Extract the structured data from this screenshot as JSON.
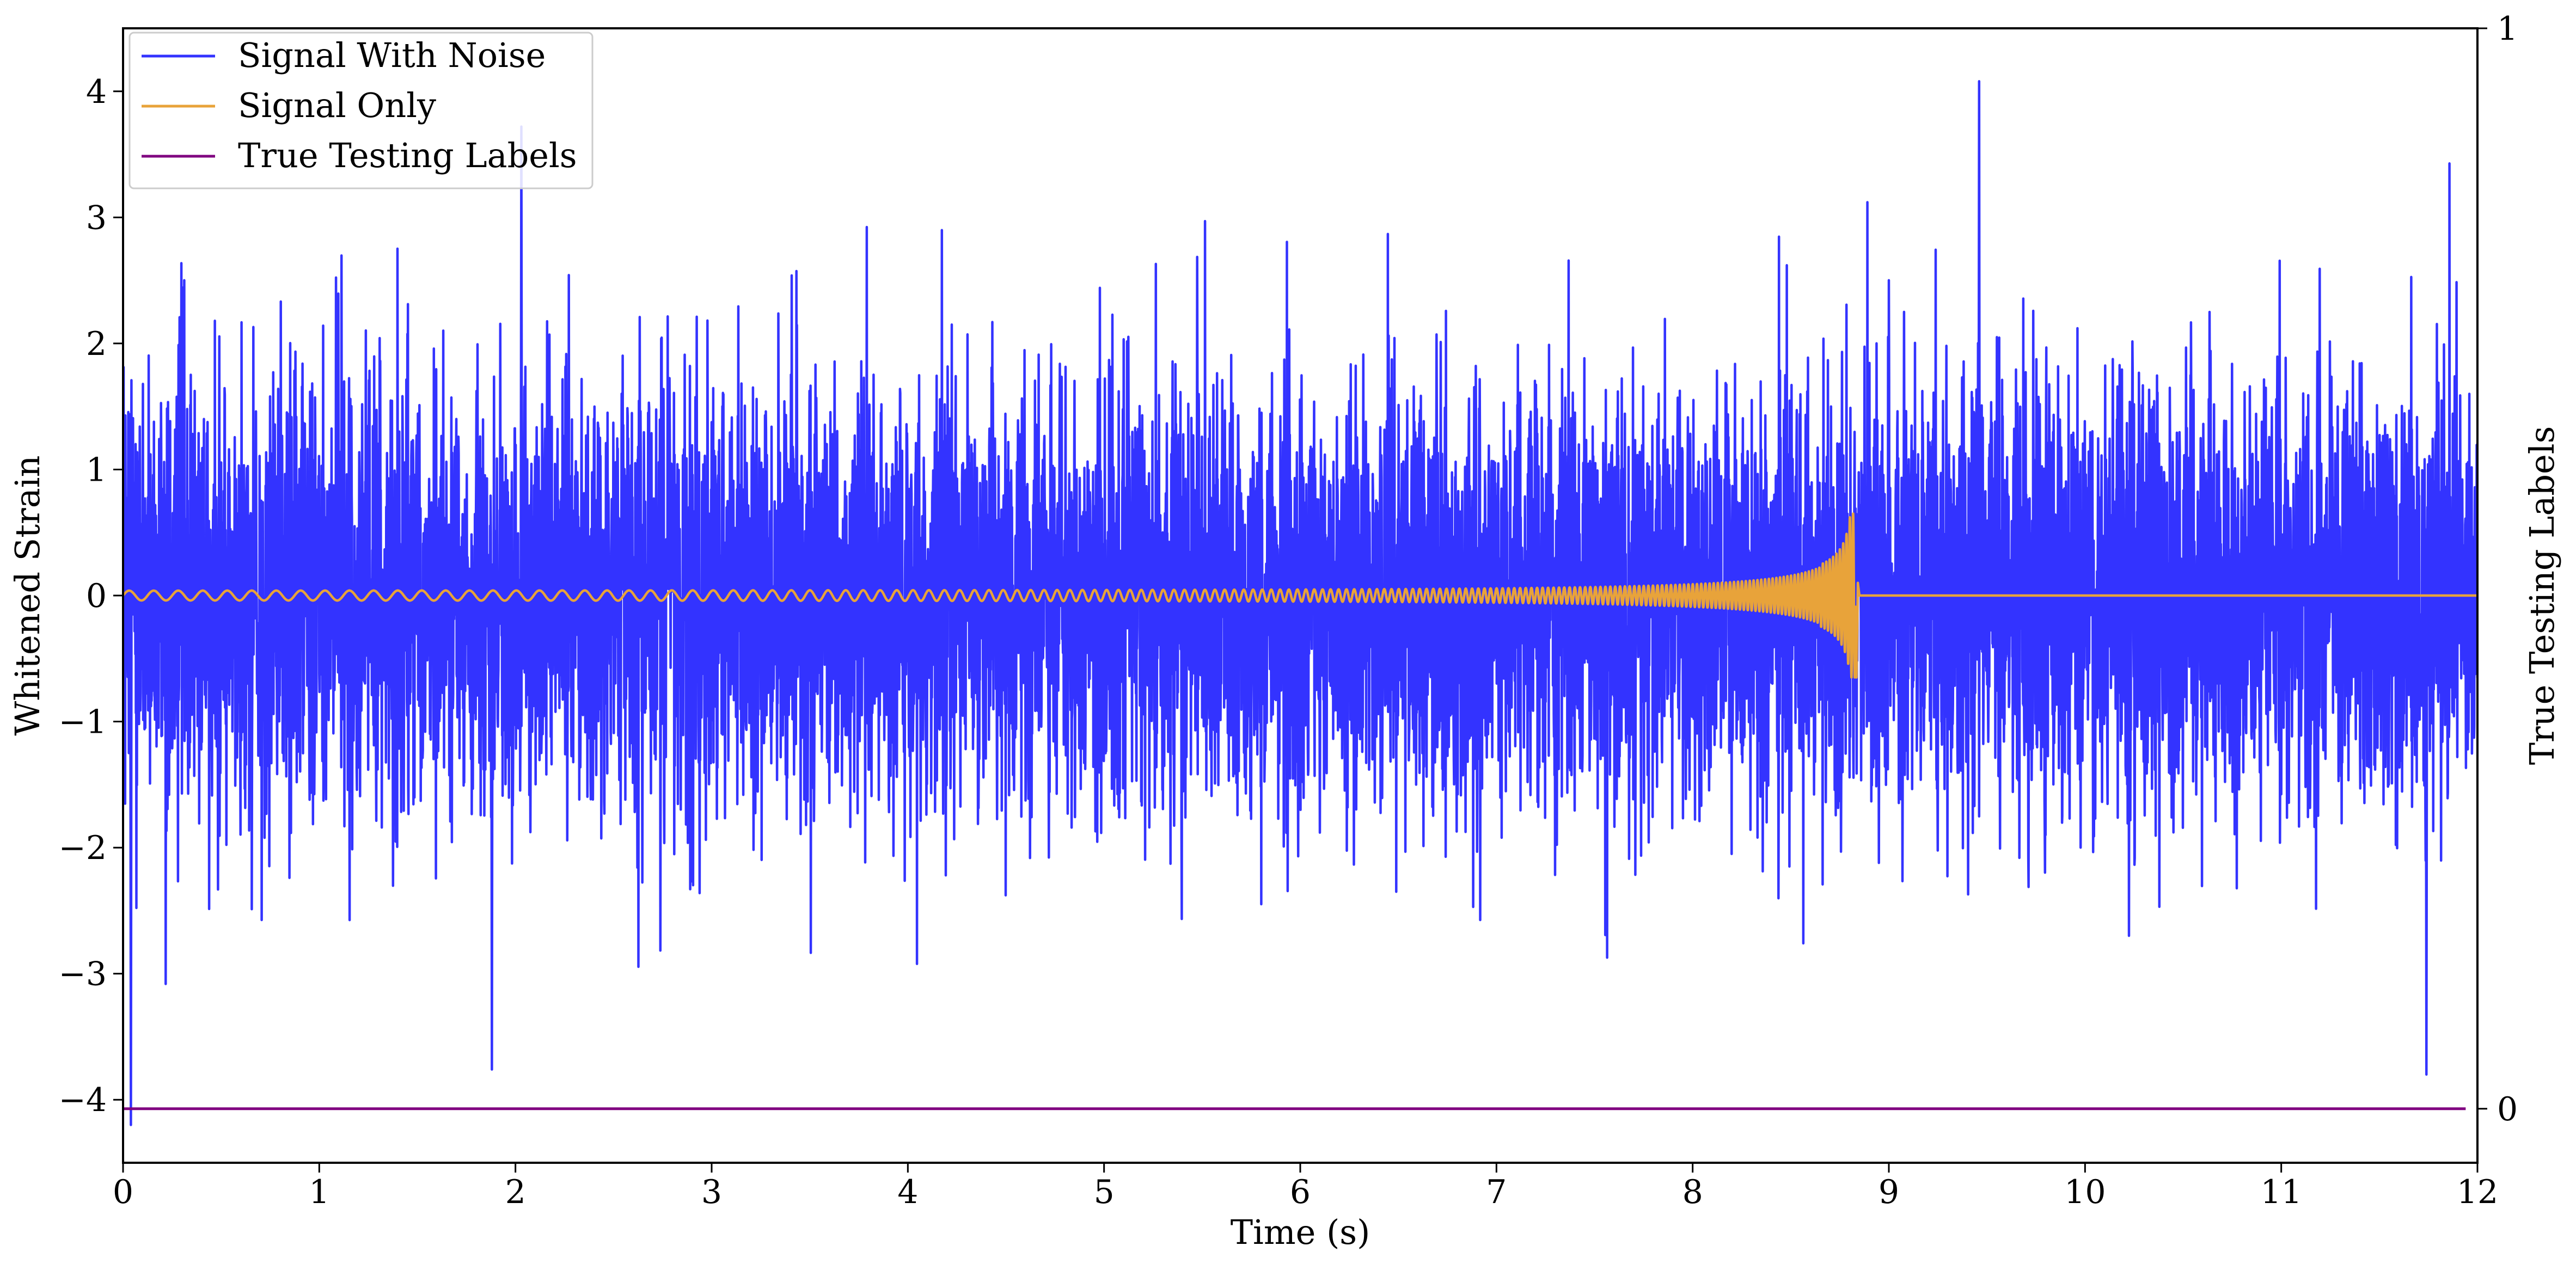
{
  "chart_data": {
    "type": "line",
    "xlabel": "Time (s)",
    "ylabel": "Whitened Strain",
    "y2label": "True Testing Labels",
    "xlim": [
      0,
      12
    ],
    "ylim": [
      -4.5,
      4.5
    ],
    "y2lim": [
      -0.05,
      1.0
    ],
    "xticks": [
      0,
      1,
      2,
      3,
      4,
      5,
      6,
      7,
      8,
      9,
      10,
      11,
      12
    ],
    "yticks": [
      -4,
      -3,
      -2,
      -1,
      0,
      1,
      2,
      3,
      4
    ],
    "y2ticks": [
      0,
      1
    ],
    "xtick_labels": [
      "0",
      "1",
      "2",
      "3",
      "4",
      "5",
      "6",
      "7",
      "8",
      "9",
      "10",
      "11",
      "12"
    ],
    "ytick_labels": [
      "−4",
      "−3",
      "−2",
      "−1",
      "0",
      "1",
      "2",
      "3",
      "4"
    ],
    "y2tick_labels": [
      "0",
      "1"
    ],
    "legend_position": "top-left",
    "grid": false,
    "series": [
      {
        "name": "Signal With Noise",
        "color": "#3333ff",
        "axis": "left",
        "description_values": {
          "range_approx": [
            -4.2,
            4.1
          ],
          "noise_std_approx": 0.85,
          "notable_peaks": [
            [
              9.46,
              4.08
            ],
            [
              0.04,
              -4.2
            ],
            [
              11.74,
              -3.8
            ],
            [
              1.88,
              -3.76
            ],
            [
              2.03,
              3.72
            ]
          ]
        }
      },
      {
        "name": "Signal Only",
        "color": "#e8a33a",
        "axis": "left",
        "chirp": {
          "start_time": 0,
          "merger_time": 8.83,
          "end_time": 12,
          "start_amplitude": 0.03,
          "peak_amplitude": 0.65,
          "start_freq_hz": 8,
          "peak_freq_hz": 60
        }
      },
      {
        "name": "True Testing Labels",
        "color": "#800080",
        "axis": "right",
        "x": [
          0,
          11.94
        ],
        "y": [
          0,
          0
        ]
      }
    ]
  }
}
